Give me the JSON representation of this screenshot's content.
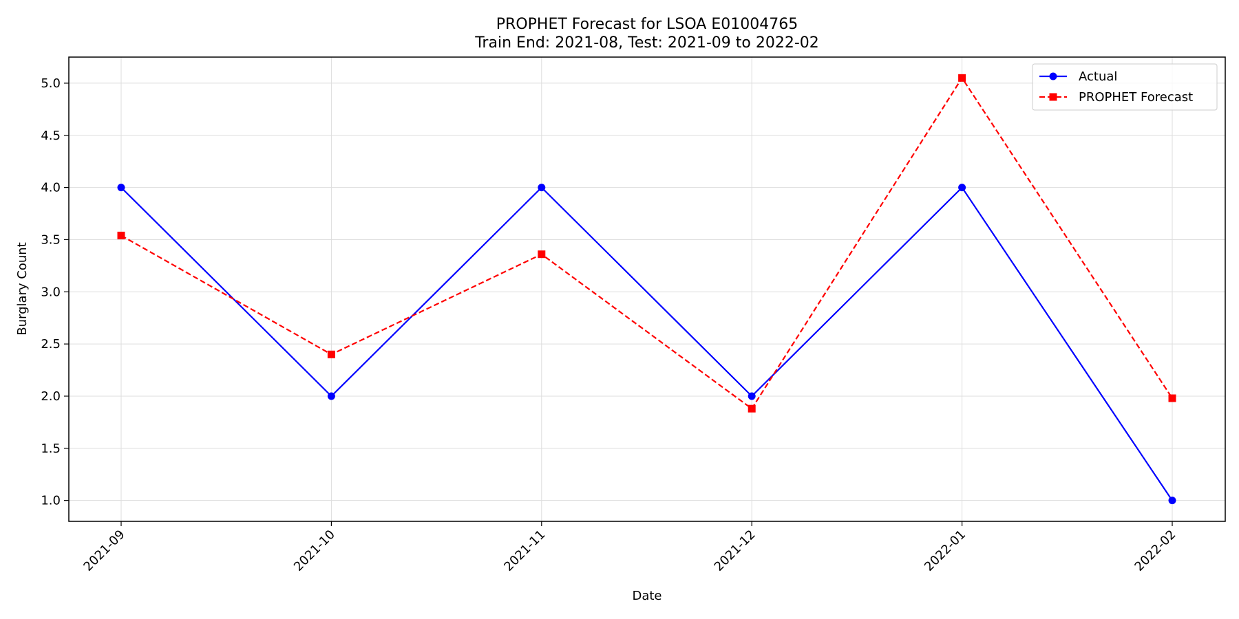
{
  "chart_data": {
    "type": "line",
    "title_line1": "PROPHET Forecast for LSOA E01004765",
    "title_line2": "Train End: 2021-08, Test: 2021-09 to 2022-02",
    "xlabel": "Date",
    "ylabel": "Burglary Count",
    "categories": [
      "2021-09",
      "2021-10",
      "2021-11",
      "2021-12",
      "2022-01",
      "2022-02"
    ],
    "ylim": [
      0.8,
      5.25
    ],
    "yticks": [
      "1.0",
      "1.5",
      "2.0",
      "2.5",
      "3.0",
      "3.5",
      "4.0",
      "4.5",
      "5.0"
    ],
    "grid": true,
    "legend_position": "top-right",
    "series": [
      {
        "name": "Actual",
        "values": [
          4.0,
          2.0,
          4.0,
          2.0,
          4.0,
          1.0
        ],
        "color": "#0000ff",
        "line_style": "solid",
        "marker": "circle"
      },
      {
        "name": "PROPHET Forecast",
        "values": [
          3.54,
          2.4,
          3.36,
          1.88,
          5.05,
          1.98
        ],
        "color": "#ff0000",
        "line_style": "dashed",
        "marker": "square"
      }
    ]
  }
}
